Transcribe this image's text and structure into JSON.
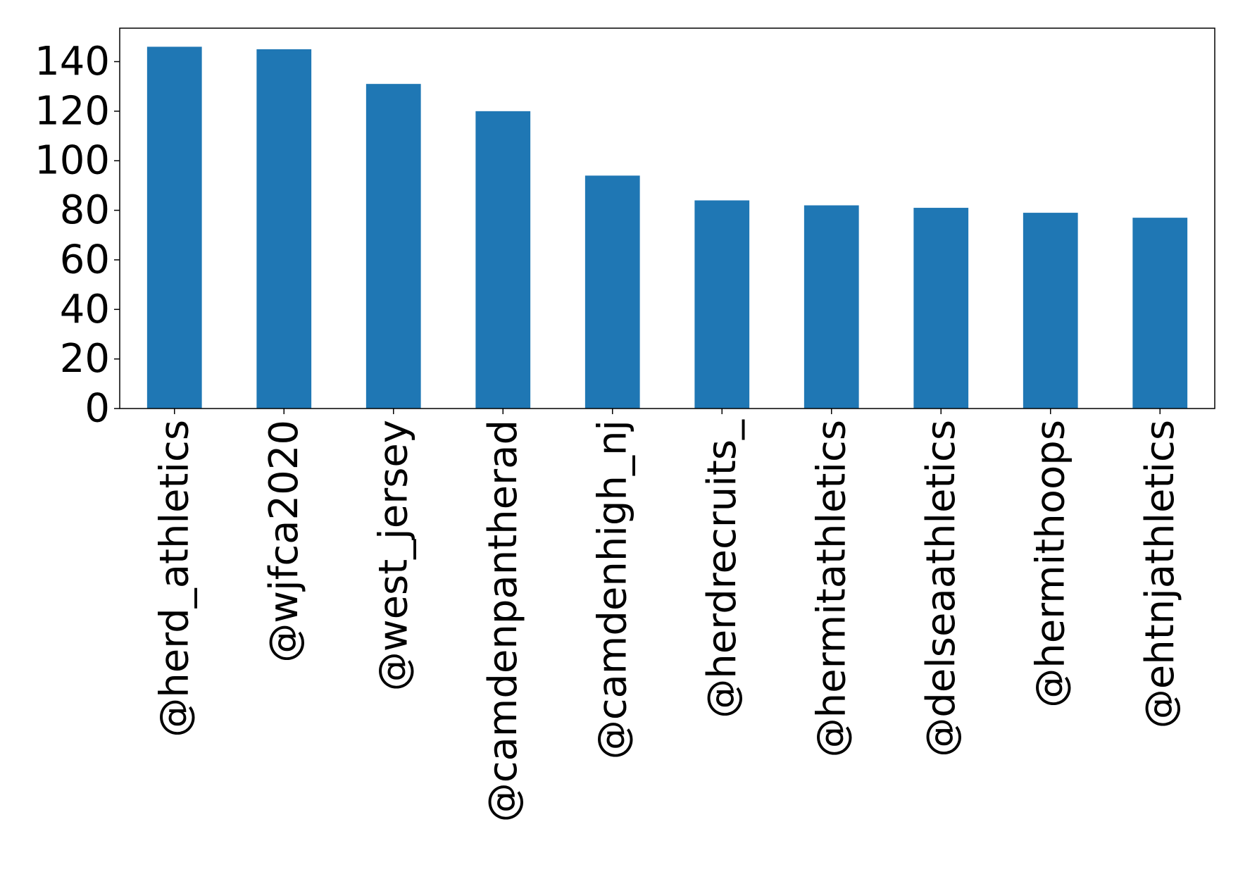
{
  "chart_data": {
    "type": "bar",
    "title": "",
    "xlabel": "",
    "ylabel": "",
    "categories": [
      "@herd_athletics",
      "@wjfca2020",
      "@west_jersey",
      "@camdenpantherad",
      "@camdenhigh_nj",
      "@herdrecruits_",
      "@hermitathletics",
      "@delseaathletics",
      "@hermithoops",
      "@ehtnjathletics"
    ],
    "values": [
      146,
      145,
      131,
      120,
      94,
      84,
      82,
      81,
      79,
      77
    ],
    "ylim": [
      0,
      153.5
    ],
    "yticks": [
      0,
      20,
      40,
      60,
      80,
      100,
      120,
      140
    ],
    "bar_color": "#1f77b4",
    "grid": false,
    "legend": "none"
  }
}
